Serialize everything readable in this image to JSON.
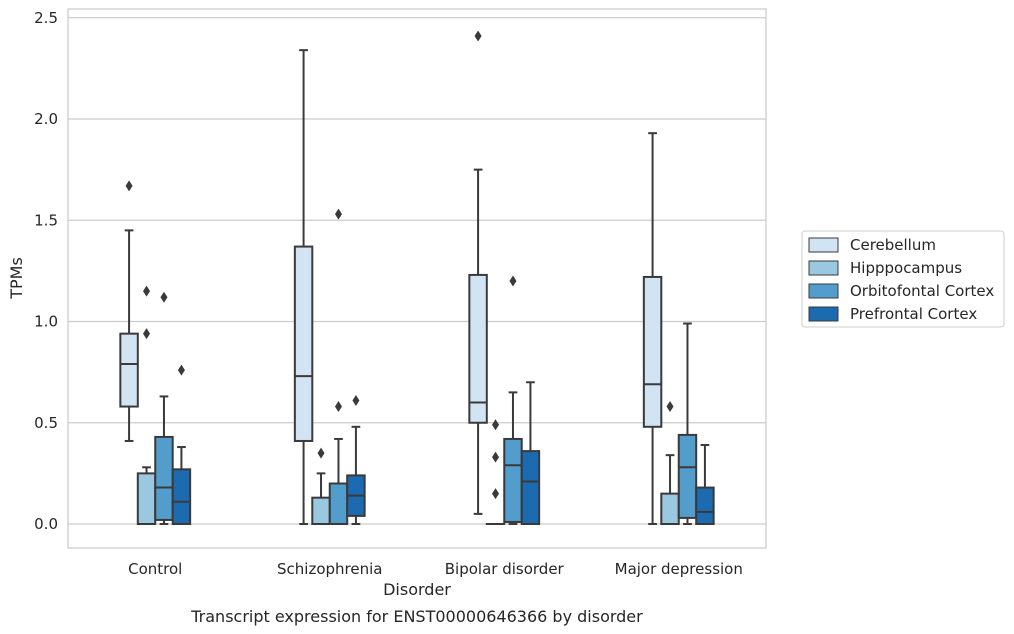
{
  "chart_data": {
    "type": "box",
    "title": "",
    "caption": "Transcript expression for ENST00000646366 by disorder",
    "xlabel": "Disorder",
    "ylabel": "TPMs",
    "ylim": [
      -0.12,
      2.54
    ],
    "yticks": [
      "0.0",
      "0.5",
      "1.0",
      "1.5",
      "2.0",
      "2.5"
    ],
    "ytick_values": [
      0,
      0.5,
      1.0,
      1.5,
      2.0,
      2.5
    ],
    "grid": "horizontal",
    "legend_placement": "center-right",
    "categories": [
      "Control",
      "Schizophrenia",
      "Bipolar disorder",
      "Major depression"
    ],
    "series": [
      {
        "name": "Cerebellum",
        "color": "#d2e3f3",
        "boxes": [
          {
            "whislo": 0.41,
            "q1": 0.58,
            "med": 0.79,
            "q3": 0.94,
            "whishi": 1.45,
            "fliers": [
              1.67
            ]
          },
          {
            "whislo": 0.0,
            "q1": 0.41,
            "med": 0.73,
            "q3": 1.37,
            "whishi": 2.34,
            "fliers": []
          },
          {
            "whislo": 0.05,
            "q1": 0.5,
            "med": 0.6,
            "q3": 1.23,
            "whishi": 1.75,
            "fliers": [
              2.41
            ]
          },
          {
            "whislo": 0.0,
            "q1": 0.48,
            "med": 0.69,
            "q3": 1.22,
            "whishi": 1.93,
            "fliers": []
          }
        ]
      },
      {
        "name": "Hipppocampus",
        "color": "#9ac8e0",
        "boxes": [
          {
            "whislo": 0.0,
            "q1": 0.0,
            "med": 0.0,
            "q3": 0.25,
            "whishi": 0.28,
            "fliers": [
              0.94,
              1.15
            ]
          },
          {
            "whislo": 0.0,
            "q1": 0.0,
            "med": 0.0,
            "q3": 0.13,
            "whishi": 0.25,
            "fliers": [
              0.35
            ]
          },
          {
            "whislo": 0.0,
            "q1": 0.0,
            "med": 0.0,
            "q3": 0.0,
            "whishi": 0.0,
            "fliers": [
              0.15,
              0.33,
              0.49
            ]
          },
          {
            "whislo": 0.0,
            "q1": 0.0,
            "med": 0.0,
            "q3": 0.15,
            "whishi": 0.34,
            "fliers": [
              0.58
            ]
          }
        ]
      },
      {
        "name": "Orbitofontal Cortex",
        "color": "#529dcc",
        "boxes": [
          {
            "whislo": 0.0,
            "q1": 0.02,
            "med": 0.18,
            "q3": 0.43,
            "whishi": 0.63,
            "fliers": [
              1.12
            ]
          },
          {
            "whislo": 0.0,
            "q1": 0.0,
            "med": 0.0,
            "q3": 0.2,
            "whishi": 0.42,
            "fliers": [
              0.58,
              1.53
            ]
          },
          {
            "whislo": 0.0,
            "q1": 0.01,
            "med": 0.29,
            "q3": 0.42,
            "whishi": 0.65,
            "fliers": [
              1.2
            ]
          },
          {
            "whislo": 0.0,
            "q1": 0.03,
            "med": 0.28,
            "q3": 0.44,
            "whishi": 0.99,
            "fliers": []
          }
        ]
      },
      {
        "name": "Prefrontal Cortex",
        "color": "#1c6aaf",
        "boxes": [
          {
            "whislo": 0.0,
            "q1": 0.0,
            "med": 0.11,
            "q3": 0.27,
            "whishi": 0.38,
            "fliers": [
              0.76
            ]
          },
          {
            "whislo": 0.0,
            "q1": 0.04,
            "med": 0.14,
            "q3": 0.24,
            "whishi": 0.48,
            "fliers": [
              0.61
            ]
          },
          {
            "whislo": 0.0,
            "q1": 0.0,
            "med": 0.21,
            "q3": 0.36,
            "whishi": 0.7,
            "fliers": []
          },
          {
            "whislo": 0.0,
            "q1": 0.0,
            "med": 0.06,
            "q3": 0.18,
            "whishi": 0.39,
            "fliers": []
          }
        ]
      }
    ]
  }
}
